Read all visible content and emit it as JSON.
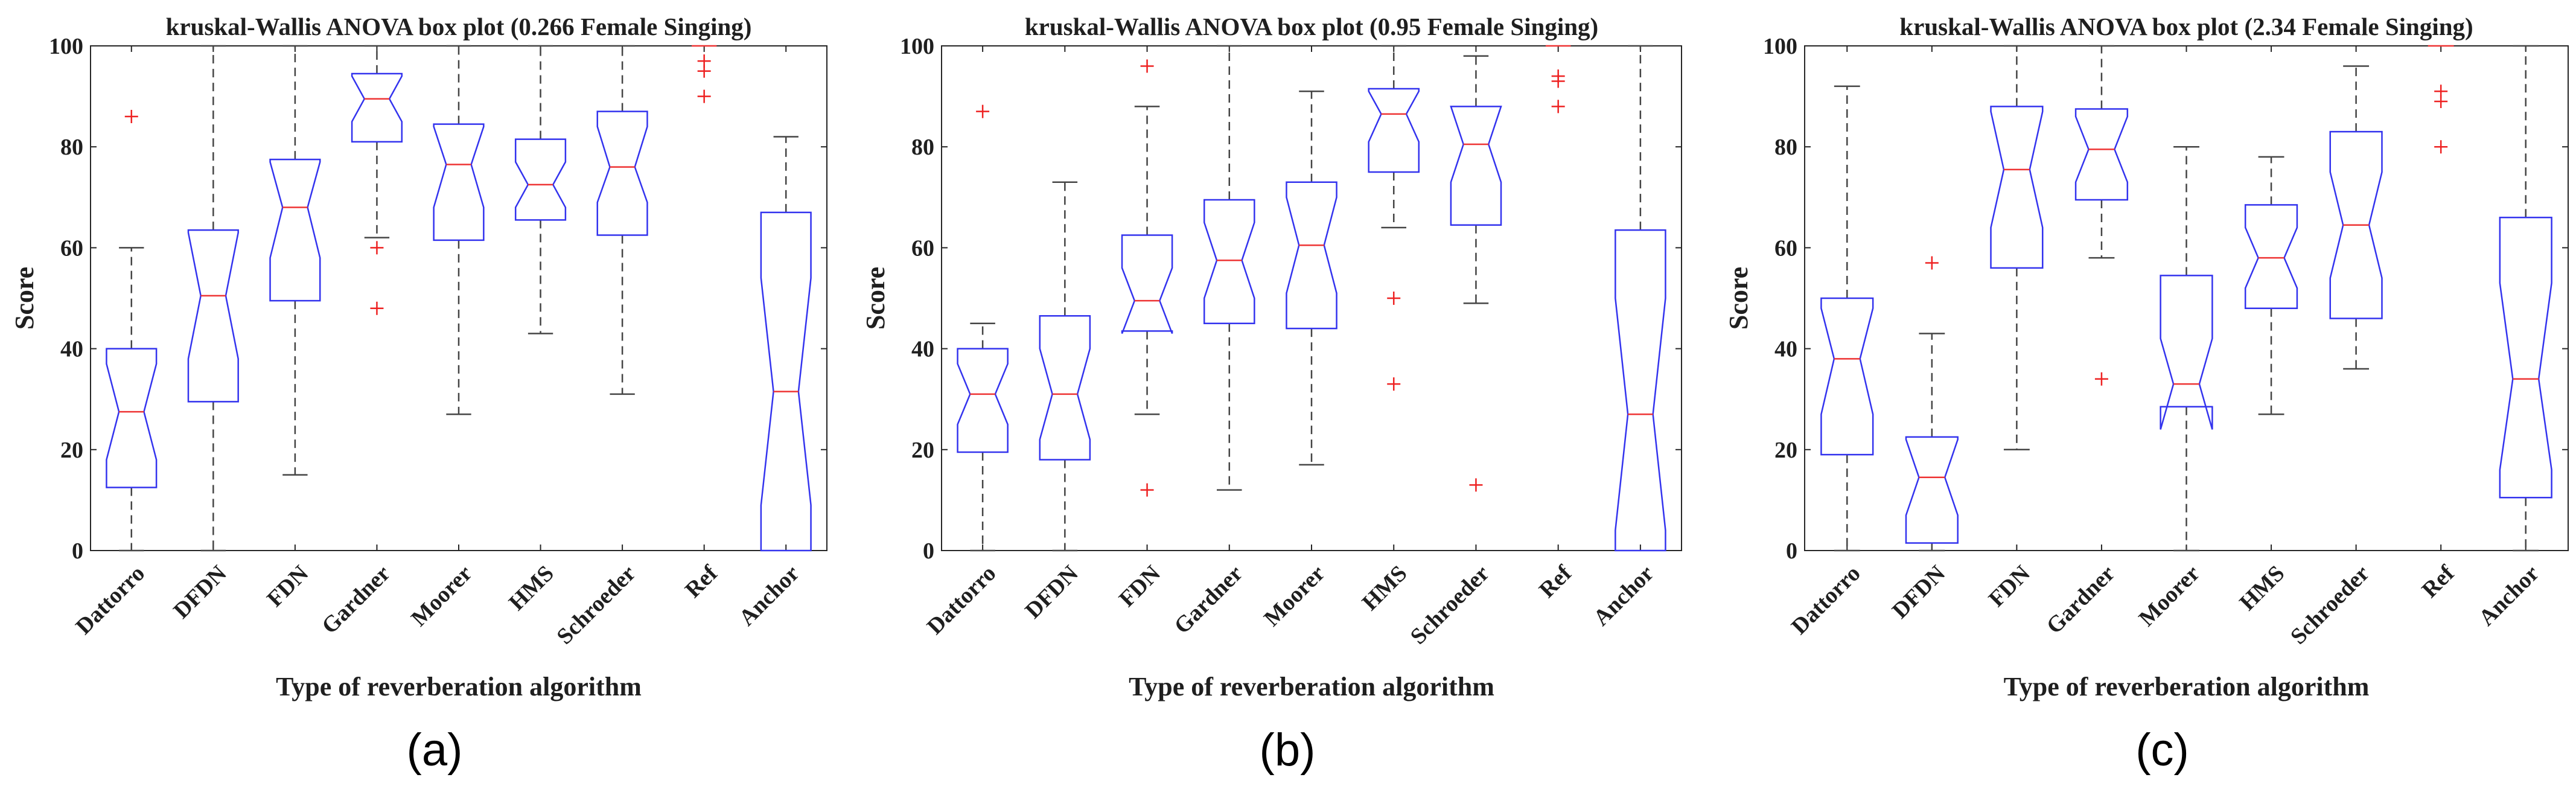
{
  "chart_data": [
    {
      "type": "boxplot",
      "panel_label": "(a)",
      "title": "kruskal-Wallis ANOVA box plot (0.266 Female Singing)",
      "xlabel": "Type of reverberation algorithm",
      "ylabel": "Score",
      "ylim": [
        0,
        100
      ],
      "yticks": [
        "0",
        "20",
        "40",
        "60",
        "80",
        "100"
      ],
      "categories": [
        "Dattorro",
        "DFDN",
        "FDN",
        "Gardner",
        "Moorer",
        "HMS",
        "Schroeder",
        "Ref",
        "Anchor"
      ],
      "boxes": [
        {
          "min": 0,
          "q1": 12.5,
          "median": 27.5,
          "q3": 40,
          "max": 60,
          "notch_lo": 18,
          "notch_hi": 37,
          "outliers": [
            86
          ]
        },
        {
          "min": 0,
          "q1": 29.5,
          "median": 50.5,
          "q3": 63.5,
          "max": 100,
          "notch_lo": 38,
          "notch_hi": 63,
          "outliers": []
        },
        {
          "min": 15,
          "q1": 49.5,
          "median": 68,
          "q3": 77.5,
          "max": 100,
          "notch_lo": 58,
          "notch_hi": 77,
          "outliers": []
        },
        {
          "min": 62,
          "q1": 81,
          "median": 89.5,
          "q3": 94.5,
          "max": 100,
          "notch_lo": 85,
          "notch_hi": 94,
          "outliers": [
            60,
            48
          ]
        },
        {
          "min": 27,
          "q1": 61.5,
          "median": 76.5,
          "q3": 84.5,
          "max": 100,
          "notch_lo": 68,
          "notch_hi": 84,
          "outliers": []
        },
        {
          "min": 43,
          "q1": 65.5,
          "median": 72.5,
          "q3": 81.5,
          "max": 100,
          "notch_lo": 68,
          "notch_hi": 77,
          "outliers": []
        },
        {
          "min": 31,
          "q1": 62.5,
          "median": 76,
          "q3": 87,
          "max": 100,
          "notch_lo": 69,
          "notch_hi": 84,
          "outliers": []
        },
        {
          "min": 100,
          "q1": 100,
          "median": 100,
          "q3": 100,
          "max": 100,
          "notch_lo": 100,
          "notch_hi": 100,
          "outliers": [
            97,
            95,
            90
          ]
        },
        {
          "min": 0,
          "q1": 0,
          "median": 31.5,
          "q3": 67,
          "max": 82,
          "notch_lo": 9,
          "notch_hi": 54,
          "outliers": []
        }
      ]
    },
    {
      "type": "boxplot",
      "panel_label": "(b)",
      "title": "kruskal-Wallis ANOVA box plot (0.95 Female Singing)",
      "xlabel": "Type of reverberation algorithm",
      "ylabel": "Score",
      "ylim": [
        0,
        100
      ],
      "yticks": [
        "0",
        "20",
        "40",
        "60",
        "80",
        "100"
      ],
      "categories": [
        "Dattorro",
        "DFDN",
        "FDN",
        "Gardner",
        "Moorer",
        "HMS",
        "Schroeder",
        "Ref",
        "Anchor"
      ],
      "boxes": [
        {
          "min": 0,
          "q1": 19.5,
          "median": 31,
          "q3": 40,
          "max": 45,
          "notch_lo": 25,
          "notch_hi": 37,
          "outliers": [
            87
          ]
        },
        {
          "min": 0,
          "q1": 18,
          "median": 31,
          "q3": 46.5,
          "max": 73,
          "notch_lo": 22,
          "notch_hi": 40,
          "outliers": []
        },
        {
          "min": 27,
          "q1": 43.5,
          "median": 49.5,
          "q3": 62.5,
          "max": 88,
          "notch_lo": 43,
          "notch_hi": 56,
          "outliers": [
            96,
            12
          ]
        },
        {
          "min": 12,
          "q1": 45,
          "median": 57.5,
          "q3": 69.5,
          "max": 100,
          "notch_lo": 50,
          "notch_hi": 65,
          "outliers": []
        },
        {
          "min": 17,
          "q1": 44,
          "median": 60.5,
          "q3": 73,
          "max": 91,
          "notch_lo": 51,
          "notch_hi": 70,
          "outliers": []
        },
        {
          "min": 64,
          "q1": 75,
          "median": 86.5,
          "q3": 91.5,
          "max": 100,
          "notch_lo": 81,
          "notch_hi": 91,
          "outliers": [
            50,
            33
          ]
        },
        {
          "min": 49,
          "q1": 64.5,
          "median": 80.5,
          "q3": 88,
          "max": 98,
          "notch_lo": 73,
          "notch_hi": 88,
          "outliers": [
            13
          ]
        },
        {
          "min": 100,
          "q1": 100,
          "median": 100,
          "q3": 100,
          "max": 100,
          "notch_lo": 100,
          "notch_hi": 100,
          "outliers": [
            94,
            93,
            88
          ]
        },
        {
          "min": 0,
          "q1": 0,
          "median": 27,
          "q3": 63.5,
          "max": 100,
          "notch_lo": 4,
          "notch_hi": 50,
          "outliers": []
        }
      ]
    },
    {
      "type": "boxplot",
      "panel_label": "(c)",
      "title": "kruskal-Wallis ANOVA box plot (2.34 Female Singing)",
      "xlabel": "Type of reverberation algorithm",
      "ylabel": "Score",
      "ylim": [
        0,
        100
      ],
      "yticks": [
        "0",
        "20",
        "40",
        "60",
        "80",
        "100"
      ],
      "categories": [
        "Dattorro",
        "DFDN",
        "FDN",
        "Gardner",
        "Moorer",
        "HMS",
        "Schroeder",
        "Ref",
        "Anchor"
      ],
      "boxes": [
        {
          "min": 0,
          "q1": 19,
          "median": 38,
          "q3": 50,
          "max": 92,
          "notch_lo": 27,
          "notch_hi": 48,
          "outliers": []
        },
        {
          "min": 0,
          "q1": 1.5,
          "median": 14.5,
          "q3": 22.5,
          "max": 43,
          "notch_lo": 7,
          "notch_hi": 22,
          "outliers": [
            57
          ]
        },
        {
          "min": 20,
          "q1": 56,
          "median": 75.5,
          "q3": 88,
          "max": 100,
          "notch_lo": 64,
          "notch_hi": 87,
          "outliers": []
        },
        {
          "min": 58,
          "q1": 69.5,
          "median": 79.5,
          "q3": 87.5,
          "max": 100,
          "notch_lo": 73,
          "notch_hi": 86,
          "outliers": [
            34
          ]
        },
        {
          "min": 0,
          "q1": 28.5,
          "median": 33,
          "q3": 54.5,
          "max": 80,
          "notch_lo": 24,
          "notch_hi": 42,
          "outliers": []
        },
        {
          "min": 27,
          "q1": 48,
          "median": 58,
          "q3": 68.5,
          "max": 78,
          "notch_lo": 52,
          "notch_hi": 64,
          "outliers": []
        },
        {
          "min": 36,
          "q1": 46,
          "median": 64.5,
          "q3": 83,
          "max": 96,
          "notch_lo": 54,
          "notch_hi": 75,
          "outliers": []
        },
        {
          "min": 100,
          "q1": 100,
          "median": 100,
          "q3": 100,
          "max": 100,
          "notch_lo": 100,
          "notch_hi": 100,
          "outliers": [
            91,
            89,
            80
          ]
        },
        {
          "min": 0,
          "q1": 10.5,
          "median": 34,
          "q3": 66,
          "max": 100,
          "notch_lo": 16,
          "notch_hi": 53,
          "outliers": []
        }
      ]
    }
  ]
}
